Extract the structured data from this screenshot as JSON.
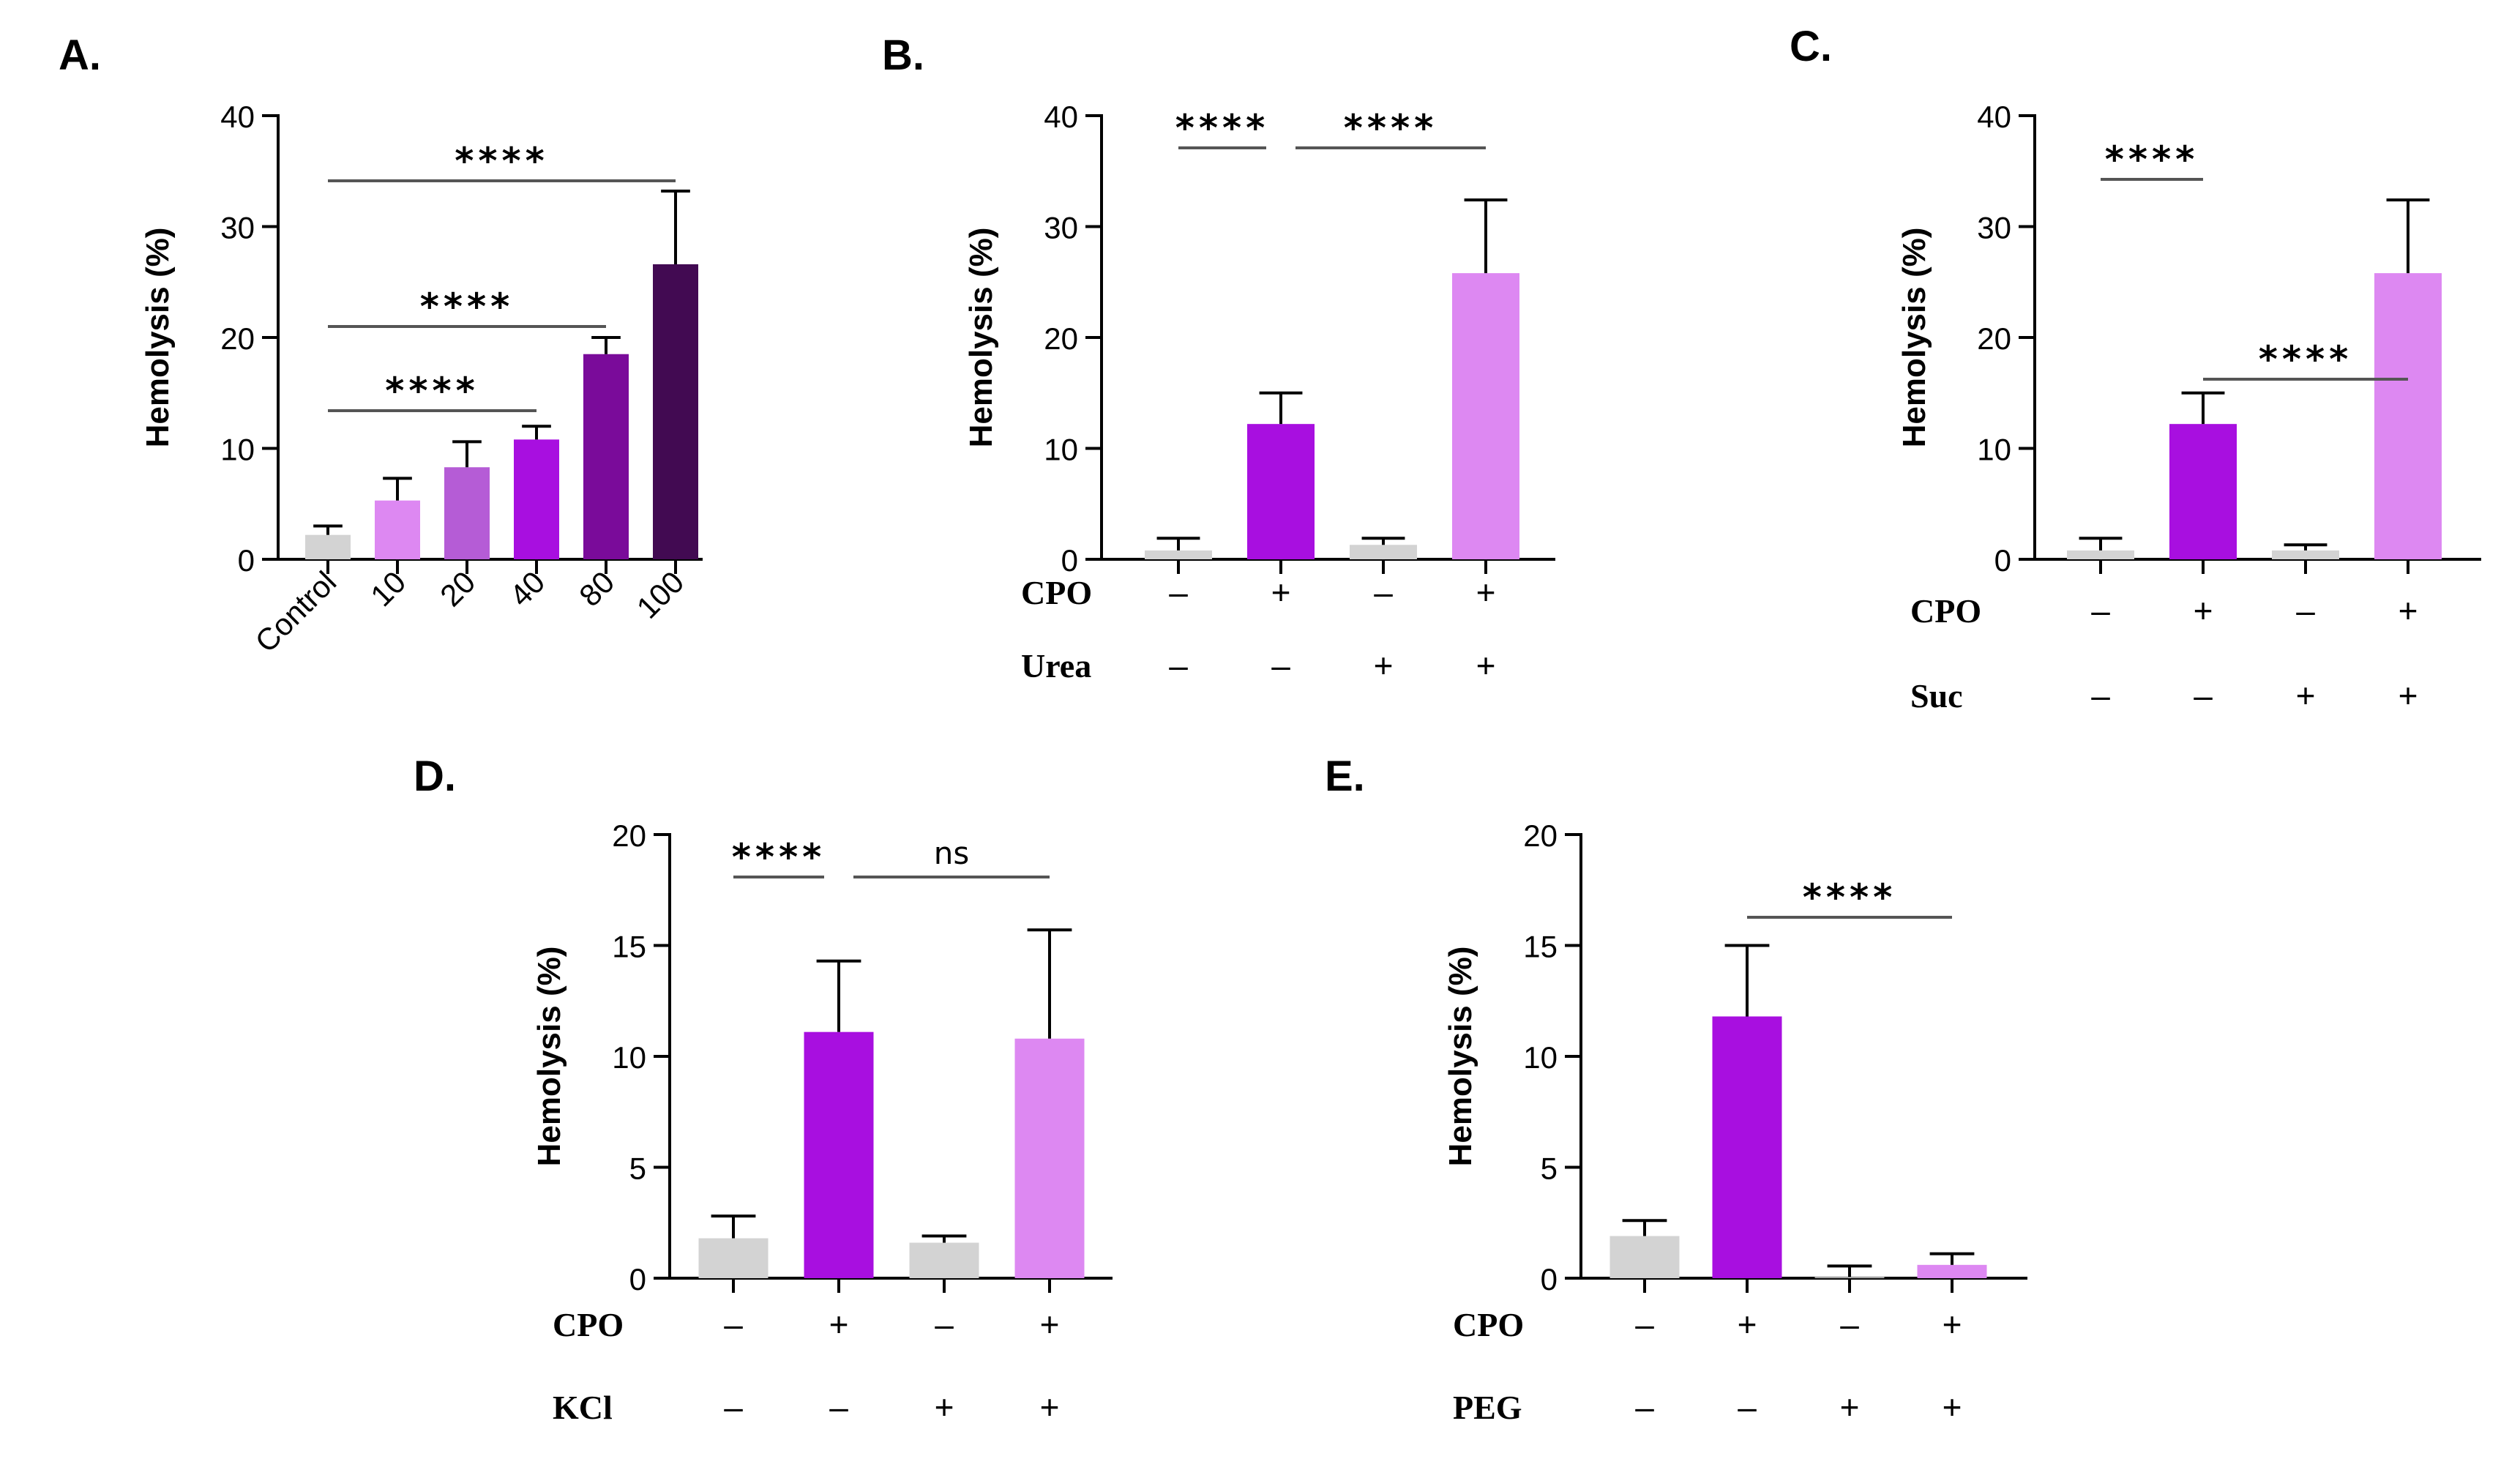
{
  "chart_data": [
    {
      "panel": "A.",
      "type": "bar",
      "ylabel": "Hemolysis (%)",
      "ylim": [
        0,
        40
      ],
      "yticks": [
        0,
        10,
        20,
        30,
        40
      ],
      "categories": [
        "Control",
        "10",
        "20",
        "40",
        "80",
        "100"
      ],
      "values": [
        2.2,
        5.3,
        8.3,
        10.8,
        18.5,
        26.6
      ],
      "errors": [
        0.8,
        2.0,
        2.3,
        1.2,
        1.5,
        6.6
      ],
      "bar_colors": [
        "#d3d3d3",
        "#dd88f2",
        "#b55cd6",
        "#a80fe0",
        "#7a0b9a",
        "#420a52"
      ],
      "rotate_categories": true,
      "significance": [
        {
          "from": 0,
          "to": 5,
          "label": "****"
        },
        {
          "from": 0,
          "to": 4,
          "label": "****"
        },
        {
          "from": 0,
          "to": 3,
          "label": "****"
        }
      ]
    },
    {
      "panel": "B.",
      "type": "bar",
      "ylabel": "Hemolysis (%)",
      "ylim": [
        0,
        40
      ],
      "yticks": [
        0,
        10,
        20,
        30,
        40
      ],
      "values": [
        0.8,
        12.2,
        1.3,
        25.8
      ],
      "errors": [
        1.1,
        2.8,
        0.6,
        6.6
      ],
      "bar_colors": [
        "#d3d3d3",
        "#a80fe0",
        "#d3d3d3",
        "#dd88f2"
      ],
      "conditions": [
        {
          "label": "CPO",
          "signs": [
            "–",
            "+",
            "–",
            "+"
          ]
        },
        {
          "label": "Urea",
          "signs": [
            "–",
            "–",
            "+",
            "+"
          ]
        }
      ],
      "significance": [
        {
          "from": 0,
          "to": 1,
          "label": "****"
        },
        {
          "from": 1,
          "to": 3,
          "label": "****"
        }
      ]
    },
    {
      "panel": "C.",
      "type": "bar",
      "ylabel": "Hemolysis (%)",
      "ylim": [
        0,
        40
      ],
      "yticks": [
        0,
        10,
        20,
        30,
        40
      ],
      "values": [
        0.8,
        12.2,
        0.8,
        25.8
      ],
      "errors": [
        1.1,
        2.8,
        0.5,
        6.6
      ],
      "bar_colors": [
        "#d3d3d3",
        "#a80fe0",
        "#d3d3d3",
        "#dd88f2"
      ],
      "conditions": [
        {
          "label": "CPO",
          "signs": [
            "–",
            "+",
            "–",
            "+"
          ]
        },
        {
          "label": "Suc",
          "signs": [
            "–",
            "–",
            "+",
            "+"
          ]
        }
      ],
      "significance": [
        {
          "from": 0,
          "to": 1,
          "label": "****"
        },
        {
          "from": 1,
          "to": 3,
          "label": "****"
        }
      ]
    },
    {
      "panel": "D.",
      "type": "bar",
      "ylabel": "Hemolysis (%)",
      "ylim": [
        0,
        20
      ],
      "yticks": [
        0,
        5,
        10,
        15,
        20
      ],
      "values": [
        1.8,
        11.1,
        1.6,
        10.8
      ],
      "errors": [
        1.0,
        3.2,
        0.3,
        4.9
      ],
      "bar_colors": [
        "#d3d3d3",
        "#a80fe0",
        "#d3d3d3",
        "#dd88f2"
      ],
      "conditions": [
        {
          "label": "CPO",
          "signs": [
            "–",
            "+",
            "–",
            "+"
          ]
        },
        {
          "label": "KCl",
          "signs": [
            "–",
            "–",
            "+",
            "+"
          ]
        }
      ],
      "significance": [
        {
          "from": 0,
          "to": 1,
          "label": "****"
        },
        {
          "from": 1,
          "to": 3,
          "label": "ns"
        }
      ]
    },
    {
      "panel": "E.",
      "type": "bar",
      "ylabel": "Hemolysis (%)",
      "ylim": [
        0,
        20
      ],
      "yticks": [
        0,
        5,
        10,
        15,
        20
      ],
      "values": [
        1.9,
        11.8,
        0.05,
        0.6
      ],
      "errors": [
        0.7,
        3.2,
        0.5,
        0.5
      ],
      "bar_colors": [
        "#d3d3d3",
        "#a80fe0",
        "#d3d3d3",
        "#dd88f2"
      ],
      "conditions": [
        {
          "label": "CPO",
          "signs": [
            "–",
            "+",
            "–",
            "+"
          ]
        },
        {
          "label": "PEG",
          "signs": [
            "–",
            "–",
            "+",
            "+"
          ]
        }
      ],
      "significance": [
        {
          "from": 1,
          "to": 3,
          "label": "****"
        }
      ]
    }
  ]
}
